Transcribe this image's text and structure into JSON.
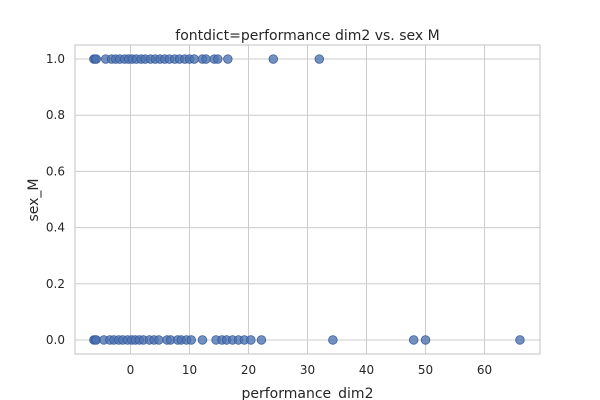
{
  "chart_data": {
    "type": "scatter",
    "title": "fontdict=performance dim2 vs. sex M",
    "xlabel": "performance_dim2",
    "ylabel": "sex_M",
    "xlim": [
      -9.4,
      69.4
    ],
    "ylim": [
      -0.05,
      1.05
    ],
    "xticks": [
      0,
      10,
      20,
      30,
      40,
      50,
      60
    ],
    "yticks": [
      0.0,
      0.2,
      0.4,
      0.6,
      0.8,
      1.0
    ],
    "xtick_labels": [
      "0",
      "10",
      "20",
      "30",
      "40",
      "50",
      "60"
    ],
    "ytick_labels": [
      "0.0",
      "0.2",
      "0.4",
      "0.6",
      "0.8",
      "1.0"
    ],
    "grid": true,
    "color": "#4c72b0",
    "series": [
      {
        "x": [
          -6.2,
          -6.0,
          -5.8,
          -4.2,
          -3.2,
          -2.5,
          -1.8,
          -1.0,
          -0.3,
          0.3,
          1.0,
          1.8,
          2.5,
          3.4,
          4.2,
          5.0,
          5.8,
          6.6,
          7.5,
          8.3,
          9.2,
          10.0,
          10.8,
          12.2,
          12.8,
          14.2,
          14.8,
          16.5,
          24.2,
          32.0
        ],
        "y": [
          1,
          1,
          1,
          1,
          1,
          1,
          1,
          1,
          1,
          1,
          1,
          1,
          1,
          1,
          1,
          1,
          1,
          1,
          1,
          1,
          1,
          1,
          1,
          1,
          1,
          1,
          1,
          1,
          1,
          1
        ]
      },
      {
        "x": [
          -6.2,
          -6.0,
          -5.8,
          -4.5,
          -3.5,
          -2.8,
          -2.0,
          -1.3,
          -0.5,
          0.2,
          0.8,
          1.5,
          2.2,
          3.2,
          4.0,
          4.8,
          6.2,
          6.8,
          8.0,
          8.6,
          9.5,
          10.3,
          12.2,
          14.5,
          15.5,
          16.3,
          17.3,
          18.3,
          19.3,
          20.4,
          22.2,
          34.3,
          48.0,
          50.0,
          66.0
        ],
        "y": [
          0,
          0,
          0,
          0,
          0,
          0,
          0,
          0,
          0,
          0,
          0,
          0,
          0,
          0,
          0,
          0,
          0,
          0,
          0,
          0,
          0,
          0,
          0,
          0,
          0,
          0,
          0,
          0,
          0,
          0,
          0,
          0,
          0,
          0,
          0
        ]
      }
    ]
  }
}
